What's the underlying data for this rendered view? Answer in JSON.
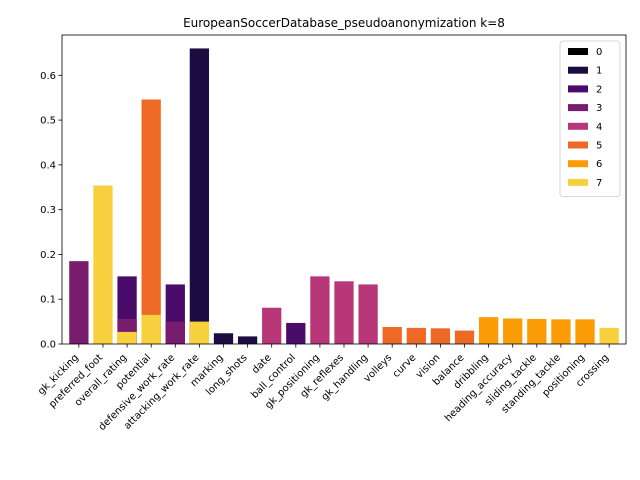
{
  "chart_data": {
    "type": "bar",
    "stacked": "overlay",
    "title": "EuropeanSoccerDatabase_pseudoanonymization k=8",
    "xlabel": "",
    "ylabel": "",
    "ylim": [
      0,
      0.69
    ],
    "yticks": [
      0.0,
      0.1,
      0.2,
      0.3,
      0.4,
      0.5,
      0.6
    ],
    "ytick_labels": [
      "0.0",
      "0.1",
      "0.2",
      "0.3",
      "0.4",
      "0.5",
      "0.6"
    ],
    "legend_position": "top-right",
    "grid": false,
    "categories": [
      "gk_kicking",
      "preferred_foot",
      "overall_rating",
      "potential",
      "defensive_work_rate",
      "attacking_work_rate",
      "marking",
      "long_shots",
      "date",
      "ball_control",
      "gk_positioning",
      "gk_reflexes",
      "gk_handling",
      "volleys",
      "curve",
      "vision",
      "balance",
      "dribbling",
      "heading_accuracy",
      "sliding_tackle",
      "standing_tackle",
      "positioning",
      "crossing"
    ],
    "series": [
      {
        "name": "0",
        "color": "#000004",
        "values": [
          null,
          null,
          null,
          null,
          null,
          null,
          null,
          null,
          null,
          null,
          null,
          null,
          null,
          null,
          null,
          null,
          null,
          null,
          null,
          null,
          null,
          null,
          null
        ]
      },
      {
        "name": "1",
        "color": "#1b0c41",
        "values": [
          null,
          null,
          null,
          null,
          null,
          0.66,
          0.024,
          0.017,
          null,
          null,
          null,
          null,
          null,
          null,
          null,
          null,
          null,
          null,
          null,
          null,
          null,
          null,
          null
        ]
      },
      {
        "name": "2",
        "color": "#4a0c6b",
        "values": [
          null,
          null,
          0.151,
          null,
          0.133,
          null,
          null,
          null,
          null,
          0.047,
          null,
          null,
          null,
          null,
          null,
          null,
          null,
          null,
          null,
          null,
          null,
          null,
          null
        ]
      },
      {
        "name": "3",
        "color": "#781c6d",
        "values": [
          0.185,
          null,
          0.056,
          null,
          0.05,
          null,
          null,
          null,
          null,
          null,
          null,
          null,
          null,
          null,
          null,
          null,
          null,
          null,
          null,
          null,
          null,
          null,
          null
        ]
      },
      {
        "name": "4",
        "color": "#b73779",
        "values": [
          null,
          null,
          null,
          null,
          null,
          null,
          null,
          null,
          0.081,
          null,
          0.151,
          0.14,
          0.133,
          null,
          null,
          null,
          null,
          null,
          null,
          null,
          null,
          null,
          null
        ]
      },
      {
        "name": "5",
        "color": "#ed6925",
        "values": [
          null,
          null,
          null,
          0.546,
          null,
          null,
          null,
          null,
          null,
          null,
          null,
          null,
          null,
          0.038,
          0.036,
          0.035,
          0.03,
          null,
          null,
          null,
          null,
          null,
          null
        ]
      },
      {
        "name": "6",
        "color": "#fb9b06",
        "values": [
          null,
          null,
          null,
          null,
          null,
          null,
          null,
          null,
          null,
          null,
          null,
          null,
          null,
          null,
          null,
          null,
          null,
          0.06,
          0.057,
          0.056,
          0.055,
          0.055,
          null
        ]
      },
      {
        "name": "7",
        "color": "#f7d13d",
        "values": [
          null,
          0.354,
          0.027,
          0.065,
          null,
          0.05,
          null,
          null,
          null,
          null,
          null,
          null,
          null,
          null,
          null,
          null,
          null,
          null,
          null,
          null,
          null,
          null,
          0.036
        ]
      }
    ]
  }
}
